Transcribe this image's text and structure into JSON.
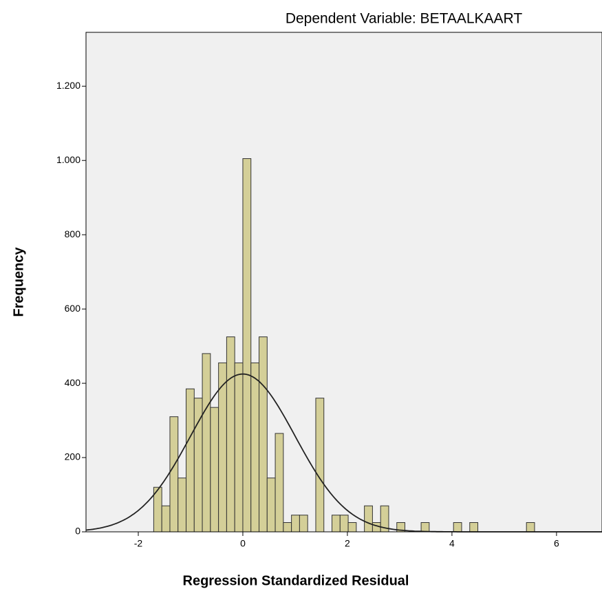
{
  "chart_data": {
    "type": "histogram",
    "title": "Dependent Variable: BETAALKAART",
    "x_label": "Regression Standardized Residual",
    "y_label": "Frequency",
    "bins": [
      -1.705,
      -1.55,
      -1.395,
      -1.24,
      -1.085,
      -0.93,
      -0.775,
      -0.62,
      -0.465,
      -0.31,
      -0.155,
      0,
      0.155,
      0.31,
      0.465,
      0.62,
      0.775,
      0.93,
      1.085,
      1.24,
      1.395,
      1.55,
      1.705,
      1.86,
      2.015,
      2.17,
      2.325,
      2.48,
      2.635,
      2.79,
      2.945,
      3.1,
      3.255,
      3.41,
      3.565,
      3.72,
      3.875,
      4.03,
      4.185,
      4.34,
      4.495,
      4.65,
      4.805,
      4.96,
      5.115,
      5.27,
      5.425,
      5.58
    ],
    "values": [
      120,
      70,
      310,
      145,
      385,
      360,
      480,
      335,
      455,
      525,
      455,
      1005,
      455,
      525,
      145,
      265,
      25,
      45,
      45,
      0,
      360,
      0,
      45,
      45,
      25,
      0,
      70,
      25,
      70,
      0,
      25,
      0,
      0,
      25,
      0,
      0,
      0,
      25,
      0,
      25,
      0,
      0,
      0,
      0,
      0,
      0,
      25
    ],
    "color": "#d4cf98",
    "normal_curve": {
      "mean": 0,
      "std_dev": 1,
      "peak": 425
    },
    "xlim": [
      -3,
      6.87
    ],
    "ylim": [
      0,
      1345
    ],
    "xticks": [
      -2,
      0,
      2,
      4,
      6
    ],
    "yticks": [
      0,
      200,
      400,
      600,
      800,
      {
        "value": 1000,
        "label": "1.000"
      },
      {
        "value": 1200,
        "label": "1.200"
      }
    ]
  }
}
